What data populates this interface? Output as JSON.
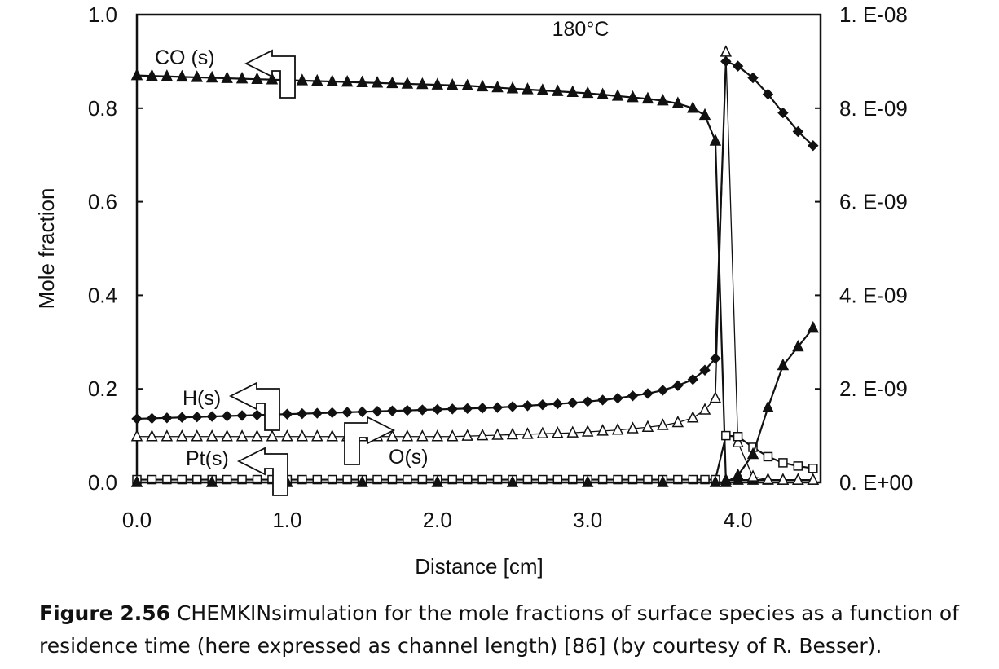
{
  "chart_data": {
    "type": "line",
    "xlabel": "Distance [cm]",
    "ylabel": "Mole fraction",
    "xlim": [
      0,
      4.55
    ],
    "ylim": [
      0,
      1.0
    ],
    "y2lim": [
      0,
      1e-08
    ],
    "x_ticks": [
      "0.0",
      "1.0",
      "2.0",
      "3.0",
      "4.0"
    ],
    "y_ticks": [
      "0.0",
      "0.2",
      "0.4",
      "0.6",
      "0.8",
      "1.0"
    ],
    "y2_ticks": [
      "0. E+00",
      "2. E-09",
      "4. E-09",
      "6. E-09",
      "8. E-09",
      "1. E-08"
    ],
    "grid": false,
    "annotations": [
      {
        "text": "180°C",
        "x": 3.1,
        "y": 0.92
      },
      {
        "text": "CO (s)",
        "x": 0.55,
        "y": 0.92,
        "arrow": "left"
      },
      {
        "text": "H(s)",
        "x": 0.52,
        "y": 0.185,
        "arrow": "left"
      },
      {
        "text": "Pt(s)",
        "x": 0.52,
        "y": 0.06,
        "arrow": "left"
      },
      {
        "text": "O(s)",
        "x": 1.72,
        "y": 0.06,
        "arrow": "right"
      }
    ],
    "series": [
      {
        "name": "CO (s)",
        "axis": "left",
        "marker": "triangle-filled",
        "x": [
          0,
          0.1,
          0.2,
          0.3,
          0.4,
          0.5,
          0.6,
          0.7,
          0.8,
          0.9,
          1.0,
          1.1,
          1.2,
          1.3,
          1.4,
          1.5,
          1.6,
          1.7,
          1.8,
          1.9,
          2.0,
          2.1,
          2.2,
          2.3,
          2.4,
          2.5,
          2.6,
          2.7,
          2.8,
          2.9,
          3.0,
          3.1,
          3.2,
          3.3,
          3.4,
          3.5,
          3.6,
          3.7,
          3.78,
          3.85,
          3.92,
          4.0,
          4.1,
          4.2,
          4.3,
          4.4,
          4.5
        ],
        "y": [
          0.87,
          0.869,
          0.868,
          0.867,
          0.866,
          0.865,
          0.864,
          0.863,
          0.862,
          0.861,
          0.86,
          0.859,
          0.858,
          0.857,
          0.856,
          0.855,
          0.854,
          0.853,
          0.852,
          0.851,
          0.85,
          0.849,
          0.848,
          0.846,
          0.844,
          0.842,
          0.84,
          0.838,
          0.836,
          0.834,
          0.832,
          0.829,
          0.826,
          0.823,
          0.82,
          0.816,
          0.81,
          0.8,
          0.785,
          0.73,
          0.005,
          0.005,
          0.005,
          0.005,
          0.005,
          0.005,
          0.005
        ]
      },
      {
        "name": "H(s)",
        "axis": "left",
        "marker": "diamond-filled",
        "x": [
          0,
          0.1,
          0.2,
          0.3,
          0.4,
          0.5,
          0.6,
          0.7,
          0.8,
          0.9,
          1.0,
          1.1,
          1.2,
          1.3,
          1.4,
          1.5,
          1.6,
          1.7,
          1.8,
          1.9,
          2.0,
          2.1,
          2.2,
          2.3,
          2.4,
          2.5,
          2.6,
          2.7,
          2.8,
          2.9,
          3.0,
          3.1,
          3.2,
          3.3,
          3.4,
          3.5,
          3.6,
          3.7,
          3.78,
          3.85,
          3.92,
          4.0,
          4.1,
          4.2,
          4.3,
          4.4,
          4.5
        ],
        "y": [
          0.136,
          0.137,
          0.138,
          0.139,
          0.14,
          0.141,
          0.142,
          0.143,
          0.144,
          0.145,
          0.146,
          0.147,
          0.148,
          0.149,
          0.15,
          0.151,
          0.152,
          0.153,
          0.154,
          0.155,
          0.156,
          0.157,
          0.158,
          0.159,
          0.16,
          0.162,
          0.164,
          0.166,
          0.168,
          0.17,
          0.173,
          0.176,
          0.18,
          0.185,
          0.19,
          0.197,
          0.207,
          0.22,
          0.24,
          0.265,
          0.9,
          0.89,
          0.865,
          0.83,
          0.79,
          0.75,
          0.72
        ]
      },
      {
        "name": "O(s)",
        "axis": "left",
        "marker": "triangle-open",
        "x": [
          0,
          0.1,
          0.2,
          0.3,
          0.4,
          0.5,
          0.6,
          0.7,
          0.8,
          0.9,
          1.0,
          1.1,
          1.2,
          1.3,
          1.4,
          1.5,
          1.6,
          1.7,
          1.8,
          1.9,
          2.0,
          2.1,
          2.2,
          2.3,
          2.4,
          2.5,
          2.6,
          2.7,
          2.8,
          2.9,
          3.0,
          3.1,
          3.2,
          3.3,
          3.4,
          3.5,
          3.6,
          3.7,
          3.78,
          3.85,
          3.92,
          4.0,
          4.1,
          4.2,
          4.3,
          4.4,
          4.5
        ],
        "y": [
          0.098,
          0.098,
          0.098,
          0.098,
          0.098,
          0.098,
          0.098,
          0.098,
          0.098,
          0.098,
          0.098,
          0.098,
          0.098,
          0.098,
          0.098,
          0.098,
          0.098,
          0.098,
          0.098,
          0.098,
          0.098,
          0.098,
          0.099,
          0.1,
          0.101,
          0.102,
          0.103,
          0.104,
          0.105,
          0.106,
          0.108,
          0.11,
          0.112,
          0.115,
          0.118,
          0.122,
          0.128,
          0.138,
          0.155,
          0.18,
          0.92,
          0.085,
          0.012,
          0.006,
          0.005,
          0.005,
          0.005
        ]
      },
      {
        "name": "Pt(s)",
        "axis": "left",
        "marker": "square-open",
        "x": [
          0,
          0.1,
          0.2,
          0.3,
          0.4,
          0.5,
          0.6,
          0.7,
          0.8,
          0.9,
          1.0,
          1.1,
          1.2,
          1.3,
          1.4,
          1.5,
          1.6,
          1.7,
          1.8,
          1.9,
          2.0,
          2.1,
          2.2,
          2.3,
          2.4,
          2.5,
          2.6,
          2.7,
          2.8,
          2.9,
          3.0,
          3.1,
          3.2,
          3.3,
          3.4,
          3.5,
          3.6,
          3.7,
          3.78,
          3.85,
          3.92,
          4.0,
          4.1,
          4.2,
          4.3,
          4.4,
          4.5
        ],
        "y": [
          0.006,
          0.006,
          0.006,
          0.006,
          0.006,
          0.006,
          0.006,
          0.006,
          0.006,
          0.006,
          0.006,
          0.006,
          0.006,
          0.006,
          0.006,
          0.006,
          0.006,
          0.006,
          0.006,
          0.006,
          0.006,
          0.006,
          0.006,
          0.006,
          0.006,
          0.006,
          0.006,
          0.006,
          0.006,
          0.006,
          0.006,
          0.006,
          0.006,
          0.006,
          0.006,
          0.006,
          0.006,
          0.006,
          0.006,
          0.006,
          0.1,
          0.098,
          0.075,
          0.055,
          0.042,
          0.035,
          0.03
        ]
      },
      {
        "name": "",
        "axis": "right",
        "marker": "triangle-filled",
        "x": [
          0,
          0.5,
          1.0,
          1.5,
          2.0,
          2.5,
          3.0,
          3.5,
          3.85,
          3.92,
          4.0,
          4.1,
          4.2,
          4.3,
          4.4,
          4.5
        ],
        "y": [
          0,
          0,
          0,
          0,
          0,
          0,
          0,
          0,
          0,
          0.0,
          1.5e-10,
          6e-10,
          1.6e-09,
          2.5e-09,
          2.9e-09,
          3.3e-09
        ]
      }
    ]
  },
  "caption": {
    "figure_label": "Figure 2.56",
    "text": " CHEMKINsimulation for the mole fractions of surface species as a function of residence time (here expressed as channel length) [86] (by courtesy of R. Besser)."
  }
}
